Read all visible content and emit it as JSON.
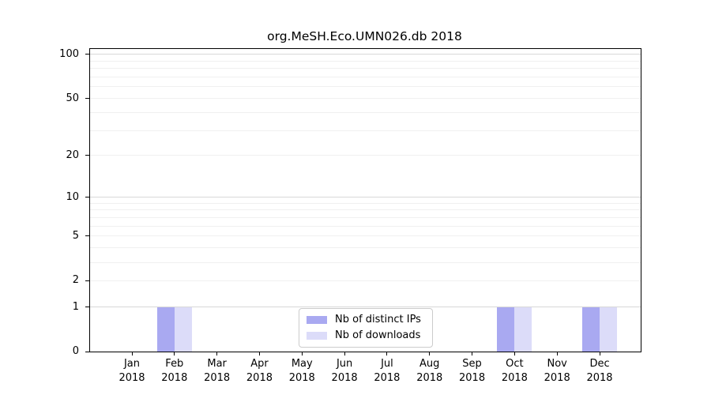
{
  "title": "org.MeSH.Eco.UMN026.db 2018",
  "chart_data": {
    "type": "bar",
    "title": "org.MeSH.Eco.UMN026.db 2018",
    "x_categories": [
      "Jan",
      "Feb",
      "Mar",
      "Apr",
      "May",
      "Jun",
      "Jul",
      "Aug",
      "Sep",
      "Oct",
      "Nov",
      "Dec"
    ],
    "x_year_label": "2018",
    "series": [
      {
        "name": "Nb of distinct IPs",
        "color": "#a9a9f1",
        "values": [
          0,
          1,
          0,
          0,
          0,
          0,
          0,
          0,
          0,
          1,
          0,
          1
        ]
      },
      {
        "name": "Nb of downloads",
        "color": "#dcdcf9",
        "values": [
          0,
          1,
          0,
          0,
          0,
          0,
          0,
          0,
          0,
          1,
          0,
          1
        ]
      }
    ],
    "y_ticks": [
      100,
      50,
      20,
      10,
      5,
      2,
      1,
      0
    ],
    "y_minor_grid": [
      2,
      3,
      4,
      5,
      6,
      7,
      8,
      9,
      20,
      30,
      40,
      50,
      60,
      70,
      80,
      90
    ],
    "y_major_grid": [
      1,
      10,
      100
    ],
    "scale": "log1p",
    "ylim": [
      0,
      110
    ],
    "grid": "horizontal",
    "legend_position": "bottom-center",
    "colors": {
      "minor_grid": "#f0f0f0",
      "major_grid": "#d8d8d8",
      "spine": "#000000",
      "background": "#ffffff"
    }
  }
}
